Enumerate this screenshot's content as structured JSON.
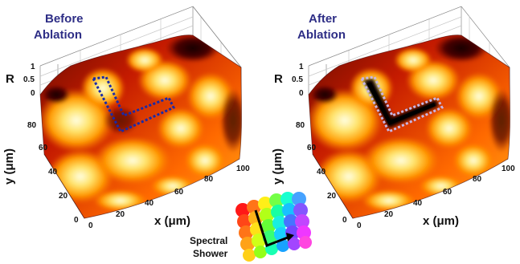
{
  "panels": [
    {
      "id": "before",
      "title_line1": "Before",
      "title_line2": "Ablation",
      "region_color": "#1a2aa8"
    },
    {
      "id": "after",
      "title_line1": "After",
      "title_line2": "Ablation",
      "region_color": "#c7b7e6"
    }
  ],
  "axes": {
    "r_label": "R",
    "y_label": "y (μm)",
    "x_label": "x (μm)",
    "r_ticks": [
      "1",
      "0.5",
      "0"
    ],
    "y_ticks": [
      "80",
      "60",
      "40",
      "20",
      "0"
    ],
    "x_ticks": [
      "0",
      "20",
      "40",
      "60",
      "80",
      "100"
    ]
  },
  "legend": {
    "line1": "Spectral",
    "line2": "Shower",
    "arrow_color": "#000000"
  }
}
